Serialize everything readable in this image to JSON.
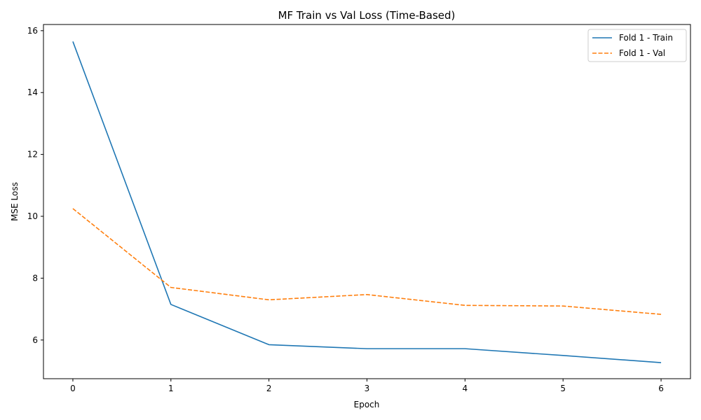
{
  "chart_data": {
    "type": "line",
    "title": "MF Train vs Val Loss (Time-Based)",
    "xlabel": "Epoch",
    "ylabel": "MSE Loss",
    "x": [
      0,
      1,
      2,
      3,
      4,
      5,
      6
    ],
    "xlim": [
      -0.3,
      6.3
    ],
    "ylim": [
      4.75,
      16.2
    ],
    "xticks": [
      "0",
      "1",
      "2",
      "3",
      "4",
      "5",
      "6"
    ],
    "yticks": [
      "6",
      "8",
      "10",
      "12",
      "14",
      "16"
    ],
    "grid": false,
    "legend_position": "top-right",
    "series": [
      {
        "name": "Fold 1 - Train",
        "values": [
          15.65,
          7.15,
          5.85,
          5.72,
          5.72,
          5.5,
          5.27
        ],
        "color": "#1f77b4",
        "style": "solid"
      },
      {
        "name": "Fold 1 - Val",
        "values": [
          10.25,
          7.7,
          7.3,
          7.47,
          7.12,
          7.1,
          6.83
        ],
        "color": "#ff7f0e",
        "style": "dashed"
      }
    ]
  }
}
